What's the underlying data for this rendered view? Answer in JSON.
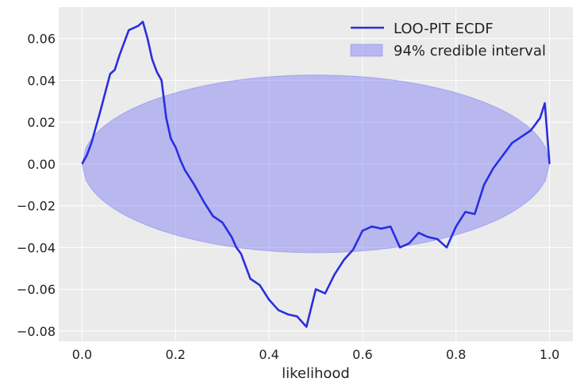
{
  "chart_data": {
    "type": "line",
    "title": "",
    "xlabel": "likelihood",
    "ylabel": "",
    "xlim": [
      -0.05,
      1.05
    ],
    "ylim": [
      -0.085,
      0.075
    ],
    "xticks": [
      0.0,
      0.2,
      0.4,
      0.6,
      0.8,
      1.0
    ],
    "xtick_labels": [
      "0.0",
      "0.2",
      "0.4",
      "0.6",
      "0.8",
      "1.0"
    ],
    "yticks": [
      -0.08,
      -0.06,
      -0.04,
      -0.02,
      0.0,
      0.02,
      0.04,
      0.06
    ],
    "ytick_labels": [
      "−0.08",
      "−0.06",
      "−0.04",
      "−0.02",
      "0.00",
      "0.02",
      "0.04",
      "0.06"
    ],
    "grid": true,
    "legend_position": "top-right",
    "background_color": "#ebebeb",
    "series": [
      {
        "name": "LOO-PIT ECDF",
        "color": "#2a2ee0",
        "x": [
          0.0,
          0.01,
          0.02,
          0.04,
          0.06,
          0.07,
          0.08,
          0.09,
          0.1,
          0.12,
          0.13,
          0.14,
          0.15,
          0.16,
          0.17,
          0.18,
          0.19,
          0.2,
          0.21,
          0.22,
          0.24,
          0.26,
          0.28,
          0.3,
          0.32,
          0.33,
          0.34,
          0.36,
          0.38,
          0.4,
          0.42,
          0.44,
          0.46,
          0.48,
          0.5,
          0.52,
          0.54,
          0.56,
          0.58,
          0.6,
          0.62,
          0.64,
          0.66,
          0.68,
          0.7,
          0.72,
          0.74,
          0.76,
          0.78,
          0.8,
          0.82,
          0.84,
          0.86,
          0.88,
          0.9,
          0.92,
          0.94,
          0.96,
          0.98,
          0.99,
          1.0
        ],
        "y": [
          0.0,
          0.004,
          0.01,
          0.026,
          0.043,
          0.045,
          0.052,
          0.058,
          0.064,
          0.066,
          0.068,
          0.06,
          0.05,
          0.044,
          0.04,
          0.022,
          0.012,
          0.008,
          0.002,
          -0.003,
          -0.01,
          -0.018,
          -0.025,
          -0.028,
          -0.035,
          -0.04,
          -0.043,
          -0.055,
          -0.058,
          -0.065,
          -0.07,
          -0.072,
          -0.073,
          -0.078,
          -0.06,
          -0.062,
          -0.053,
          -0.046,
          -0.041,
          -0.032,
          -0.03,
          -0.031,
          -0.03,
          -0.04,
          -0.038,
          -0.033,
          -0.035,
          -0.036,
          -0.04,
          -0.03,
          -0.023,
          -0.024,
          -0.01,
          -0.002,
          0.004,
          0.01,
          0.013,
          0.016,
          0.022,
          0.029,
          0.0
        ]
      }
    ],
    "band": {
      "name": "94% credible interval",
      "color": "#7b7bf5",
      "center_x": 0.5,
      "half_width_x": 0.5,
      "half_height_y": 0.0425,
      "peak_upper_x": 0.455
    }
  }
}
